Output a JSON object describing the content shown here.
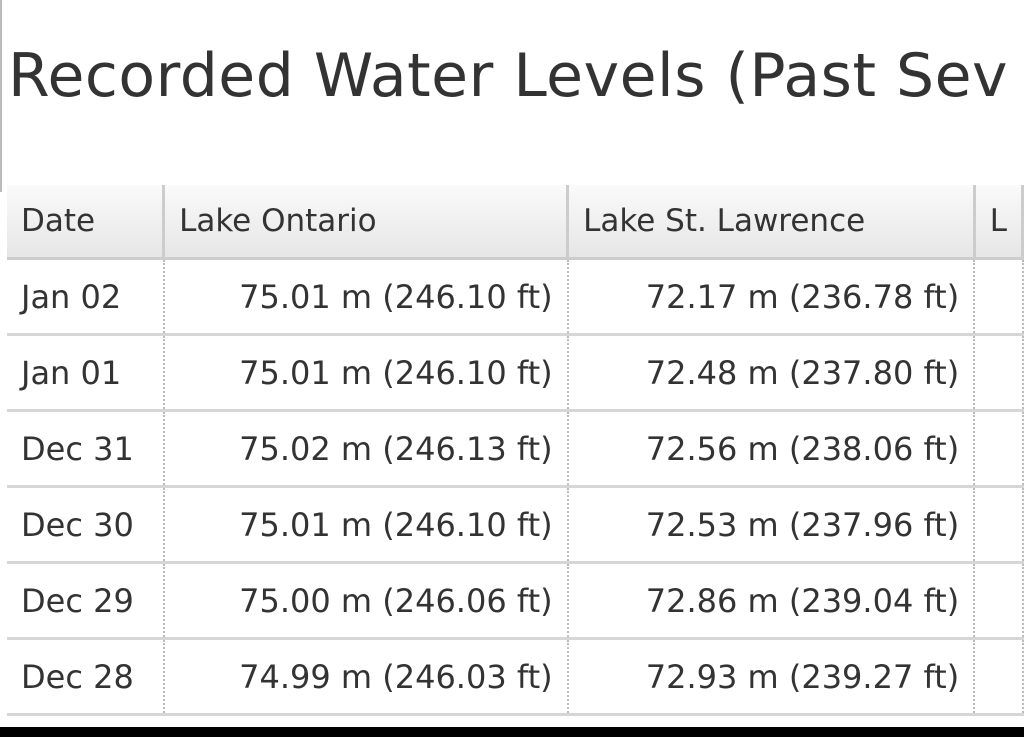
{
  "header": {
    "title": "Recorded Water Levels (Past Sev"
  },
  "table": {
    "headers": [
      "Date",
      "Lake Ontario",
      "Lake St. Lawrence",
      "L"
    ],
    "rows": [
      [
        "Jan 02",
        "75.01 m (246.10 ft)",
        "72.17 m (236.78 ft)"
      ],
      [
        "Jan 01",
        "75.01 m (246.10 ft)",
        "72.48 m (237.80 ft)"
      ],
      [
        "Dec 31",
        "75.02 m (246.13 ft)",
        "72.56 m (238.06 ft)"
      ],
      [
        "Dec 30",
        "75.01 m (246.10 ft)",
        "72.53 m (237.96 ft)"
      ],
      [
        "Dec 29",
        "75.00 m (246.06 ft)",
        "72.86 m (239.04 ft)"
      ],
      [
        "Dec 28",
        "74.99 m (246.03 ft)",
        "72.93 m (239.27 ft)"
      ]
    ]
  }
}
